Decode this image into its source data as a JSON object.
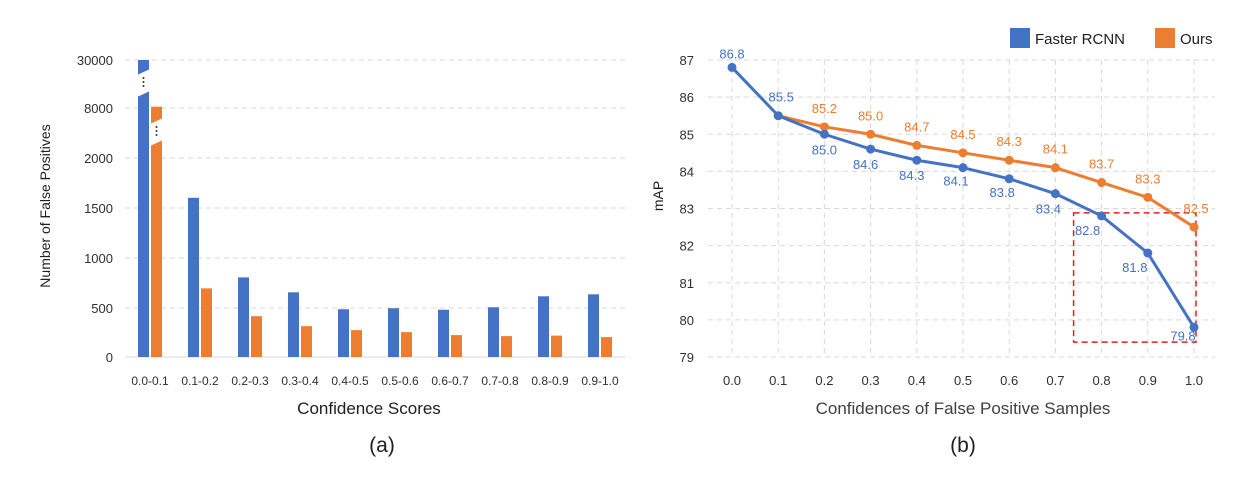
{
  "colors": {
    "faster_rcnn": "#4472C4",
    "ours": "#ED7D31",
    "grid": "#D9D9D9",
    "axis_text": "#404040",
    "highlight_box": "#E02020"
  },
  "chart_data": [
    {
      "type": "bar",
      "panel_label": "(a)",
      "xlabel": "Confidence Scores",
      "ylabel": "Number of False Positives",
      "categories": [
        "0.0-0.1",
        "0.1-0.2",
        "0.2-0.3",
        "0.3-0.4",
        "0.4-0.5",
        "0.5-0.6",
        "0.6-0.7",
        "0.7-0.8",
        "0.8-0.9",
        "0.9-1.0"
      ],
      "series": [
        {
          "name": "Faster RCNN",
          "color_key": "faster_rcnn",
          "values": [
            30000,
            1600,
            800,
            650,
            480,
            490,
            475,
            500,
            610,
            630
          ]
        },
        {
          "name": "Ours",
          "color_key": "ours",
          "values": [
            8600,
            690,
            410,
            310,
            270,
            250,
            220,
            210,
            215,
            200
          ]
        }
      ],
      "y_ticks": [
        "0",
        "500",
        "1000",
        "1500",
        "2000",
        "8000",
        "30000"
      ],
      "broken_axis": true,
      "grid": true
    },
    {
      "type": "line",
      "panel_label": "(b)",
      "xlabel": "Confidences of False Positive Samples",
      "ylabel": "mAP",
      "ylim": [
        79,
        87
      ],
      "x_ticks": [
        "0.0",
        "0.1",
        "0.2",
        "0.3",
        "0.4",
        "0.5",
        "0.6",
        "0.7",
        "0.8",
        "0.9",
        "1.0"
      ],
      "y_ticks": [
        "79",
        "80",
        "81",
        "82",
        "83",
        "84",
        "85",
        "86",
        "87"
      ],
      "series": [
        {
          "name": "Faster RCNN",
          "color_key": "faster_rcnn",
          "x": [
            0.0,
            0.1,
            0.2,
            0.3,
            0.4,
            0.5,
            0.6,
            0.7,
            0.8,
            0.9,
            1.0
          ],
          "values": [
            86.8,
            85.5,
            85.0,
            84.6,
            84.3,
            84.1,
            83.8,
            83.4,
            82.8,
            81.8,
            79.8
          ],
          "labels": [
            "86.8",
            "85.5",
            "85.0",
            "84.6",
            "84.3",
            "84.1",
            "83.8",
            "83.4",
            "82.8",
            "81.8",
            "79.8"
          ]
        },
        {
          "name": "Ours",
          "color_key": "ours",
          "x": [
            0.1,
            0.2,
            0.3,
            0.4,
            0.5,
            0.6,
            0.7,
            0.8,
            0.9,
            1.0
          ],
          "values": [
            85.5,
            85.2,
            85.0,
            84.7,
            84.5,
            84.3,
            84.1,
            83.7,
            83.3,
            82.5
          ],
          "labels": [
            "",
            "85.2",
            "85.0",
            "84.7",
            "84.5",
            "84.3",
            "84.1",
            "83.7",
            "83.3",
            "82.5"
          ]
        }
      ],
      "legend": {
        "position": "top-right",
        "entries": [
          "Faster RCNN",
          "Ours"
        ]
      },
      "grid": true,
      "highlight_box": {
        "x_range": [
          0.8,
          1.0
        ],
        "y_range": [
          79.4,
          82.8
        ]
      }
    }
  ]
}
